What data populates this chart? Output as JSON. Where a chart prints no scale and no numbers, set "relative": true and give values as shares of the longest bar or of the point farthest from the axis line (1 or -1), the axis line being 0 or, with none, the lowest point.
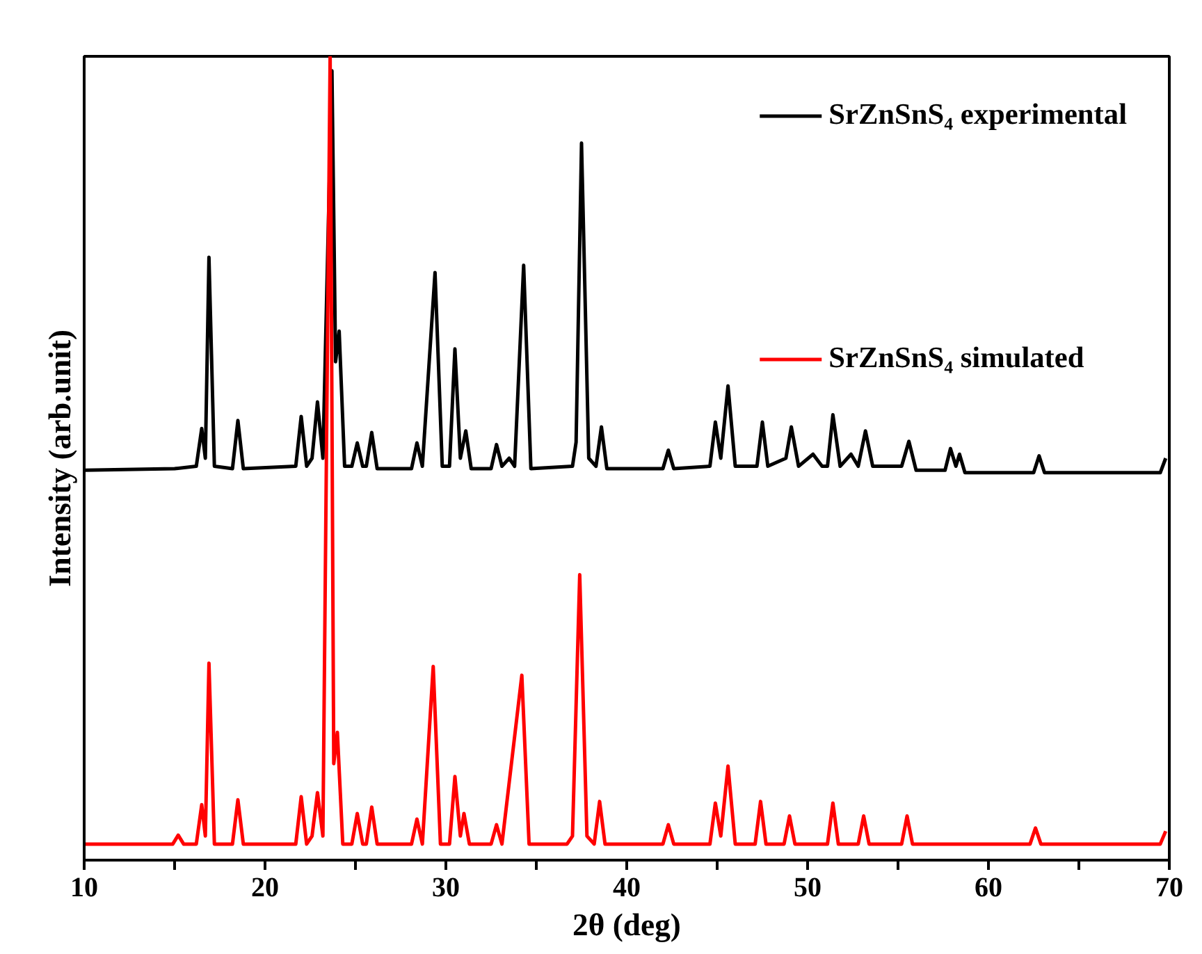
{
  "chart_data": {
    "type": "line",
    "relative": true,
    "xlabel": "2θ (deg)",
    "ylabel": "Intensity (arb.unit)",
    "xlim": [
      10,
      70
    ],
    "xticks": [
      10,
      {
        "value": 15,
        "label": null
      },
      20,
      {
        "value": 25,
        "label": null
      },
      30,
      {
        "value": 35,
        "label": null
      },
      40,
      {
        "value": 45,
        "label": null
      },
      50,
      {
        "value": 55,
        "label": null
      },
      60,
      {
        "value": 65,
        "label": null
      },
      70
    ],
    "grid": false,
    "legend": "top right",
    "marker": "none",
    "line_style": "solid",
    "series": [
      {
        "name": "SrZnSnS₄ experimental",
        "color": "#000000",
        "x": [
          10,
          15,
          16.2,
          16.5,
          16.7,
          16.9,
          17.2,
          18.2,
          18.5,
          18.8,
          21.7,
          22.0,
          22.3,
          22.6,
          22.9,
          23.2,
          23.7,
          23.9,
          24.1,
          24.4,
          24.8,
          25.1,
          25.4,
          25.6,
          25.9,
          26.2,
          28.1,
          28.4,
          28.7,
          29.4,
          29.8,
          30.2,
          30.5,
          30.8,
          31.1,
          31.4,
          32.5,
          32.8,
          33.1,
          33.5,
          33.8,
          34.3,
          34.7,
          37.0,
          37.2,
          37.5,
          37.9,
          38.3,
          38.6,
          38.9,
          42.0,
          42.3,
          42.6,
          44.6,
          44.9,
          45.2,
          45.6,
          46.0,
          47.2,
          47.5,
          47.8,
          48.8,
          49.1,
          49.5,
          50.3,
          50.8,
          51.1,
          51.4,
          51.8,
          52.4,
          52.8,
          53.2,
          53.6,
          55.2,
          55.6,
          56.0,
          57.6,
          57.9,
          58.2,
          58.4,
          58.7,
          62.5,
          62.8,
          63.1,
          69.5,
          69.8
        ],
        "values": [
          0.485,
          0.487,
          0.49,
          0.537,
          0.5,
          0.75,
          0.49,
          0.487,
          0.547,
          0.487,
          0.49,
          0.552,
          0.49,
          0.5,
          0.57,
          0.5,
          0.982,
          0.62,
          0.658,
          0.49,
          0.49,
          0.519,
          0.49,
          0.49,
          0.532,
          0.487,
          0.487,
          0.519,
          0.49,
          0.731,
          0.49,
          0.49,
          0.636,
          0.5,
          0.534,
          0.487,
          0.487,
          0.517,
          0.49,
          0.5,
          0.49,
          0.74,
          0.487,
          0.49,
          0.52,
          0.892,
          0.5,
          0.49,
          0.539,
          0.487,
          0.487,
          0.51,
          0.487,
          0.49,
          0.545,
          0.5,
          0.59,
          0.49,
          0.49,
          0.545,
          0.49,
          0.5,
          0.539,
          0.49,
          0.505,
          0.49,
          0.49,
          0.554,
          0.49,
          0.505,
          0.49,
          0.534,
          0.49,
          0.49,
          0.521,
          0.485,
          0.485,
          0.512,
          0.49,
          0.505,
          0.482,
          0.482,
          0.503,
          0.482,
          0.482,
          0.5
        ]
      },
      {
        "name": "SrZnSnS₄ simulated",
        "color": "#ff0000",
        "x": [
          10,
          14.9,
          15.2,
          15.5,
          16.2,
          16.5,
          16.7,
          16.9,
          17.2,
          18.2,
          18.5,
          18.8,
          21.7,
          22.0,
          22.3,
          22.6,
          22.9,
          23.2,
          23.6,
          23.8,
          24.0,
          24.3,
          24.8,
          25.1,
          25.4,
          25.6,
          25.9,
          26.2,
          28.1,
          28.4,
          28.7,
          29.3,
          29.7,
          30.2,
          30.5,
          30.8,
          31.0,
          31.3,
          32.5,
          32.8,
          33.1,
          34.2,
          34.6,
          36.7,
          37.0,
          37.4,
          37.8,
          38.2,
          38.5,
          38.8,
          42.0,
          42.3,
          42.6,
          44.6,
          44.9,
          45.2,
          45.6,
          46.0,
          47.1,
          47.4,
          47.7,
          48.7,
          49.0,
          49.3,
          51.1,
          51.4,
          51.7,
          52.8,
          53.1,
          53.4,
          55.2,
          55.5,
          55.8,
          62.3,
          62.6,
          62.9,
          69.5,
          69.8
        ],
        "values": [
          0.02,
          0.02,
          0.031,
          0.02,
          0.02,
          0.069,
          0.03,
          0.245,
          0.02,
          0.02,
          0.075,
          0.02,
          0.02,
          0.079,
          0.02,
          0.03,
          0.084,
          0.03,
          1.0,
          0.12,
          0.159,
          0.02,
          0.02,
          0.058,
          0.02,
          0.02,
          0.066,
          0.02,
          0.02,
          0.051,
          0.02,
          0.241,
          0.02,
          0.02,
          0.104,
          0.03,
          0.058,
          0.02,
          0.02,
          0.044,
          0.02,
          0.23,
          0.02,
          0.02,
          0.03,
          0.355,
          0.03,
          0.02,
          0.073,
          0.02,
          0.02,
          0.044,
          0.02,
          0.02,
          0.071,
          0.03,
          0.117,
          0.02,
          0.02,
          0.073,
          0.02,
          0.02,
          0.055,
          0.02,
          0.02,
          0.071,
          0.02,
          0.02,
          0.055,
          0.02,
          0.02,
          0.055,
          0.02,
          0.02,
          0.04,
          0.02,
          0.02,
          0.036
        ]
      }
    ]
  }
}
